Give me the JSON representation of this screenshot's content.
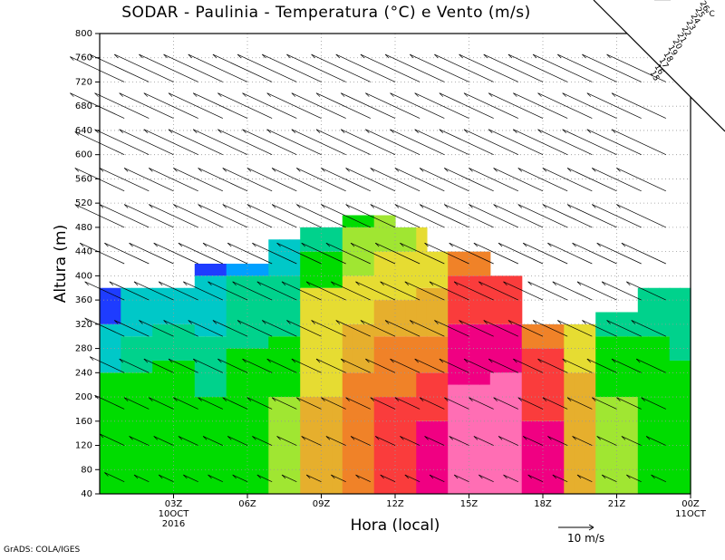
{
  "title": "SODAR - Paulinia - Temperatura (°C) e Vento (m/s)",
  "footer": "GrADS: COLA/IGES",
  "colorbar": {
    "unit": "°C",
    "labels": [
      "15",
      "16",
      "17",
      "18",
      "19",
      "20",
      "21",
      "22",
      "23",
      "24",
      "25",
      "26"
    ],
    "colors": [
      "#a000c8",
      "#6e00dc",
      "#1e3cff",
      "#00a0ff",
      "#00c8c8",
      "#00d28c",
      "#00dc00",
      "#a0e632",
      "#e6dc32",
      "#e6af2d",
      "#f08228",
      "#fa3c3c",
      "#f00082",
      "#ff6eb4",
      "#ffb4dc"
    ]
  },
  "chart_data": {
    "type": "heatmap",
    "title": "SODAR - Paulinia - Temperatura (°C) e Vento (m/s)",
    "xlabel": "Hora (local)",
    "ylabel": "Altura (m)",
    "x_ticks": [
      "03Z",
      "06Z",
      "09Z",
      "12Z",
      "15Z",
      "18Z",
      "21Z",
      "00Z"
    ],
    "x_sublabels": [
      {
        "tick": "03Z",
        "lines": [
          "10OCT",
          "2016"
        ]
      },
      {
        "tick": "00Z",
        "lines": [
          "11OCT"
        ]
      }
    ],
    "xlim_hours": [
      0,
      24
    ],
    "ylim": [
      40,
      800
    ],
    "y_ticks": [
      40,
      80,
      120,
      160,
      200,
      240,
      280,
      320,
      360,
      400,
      440,
      480,
      520,
      560,
      600,
      640,
      680,
      720,
      760,
      800
    ],
    "grid": true,
    "vector_legend": "10 m/s",
    "top_heights_m": [
      380,
      380,
      380,
      380,
      380,
      380,
      420,
      420,
      420,
      460,
      460,
      460,
      460,
      480,
      480,
      480,
      480,
      480,
      480,
      480,
      520,
      520,
      520,
      500,
      500,
      500,
      500,
      500,
      480,
      480,
      480,
      440,
      440,
      440,
      440,
      440,
      440,
      400,
      400,
      400,
      360,
      360,
      320,
      320,
      320,
      320,
      320,
      340,
      340,
      380,
      380,
      380,
      380,
      380,
      380,
      380
    ],
    "temperature_c": [
      {
        "hour": 0.0,
        "bands": [
          [
            40,
            240,
            19
          ],
          [
            240,
            320,
            17
          ],
          [
            320,
            380,
            15
          ]
        ]
      },
      {
        "hour": 1.5,
        "bands": [
          [
            40,
            240,
            19
          ],
          [
            240,
            300,
            18
          ],
          [
            300,
            380,
            17
          ]
        ]
      },
      {
        "hour": 3.0,
        "bands": [
          [
            40,
            260,
            19
          ],
          [
            260,
            320,
            18
          ],
          [
            320,
            380,
            17
          ]
        ]
      },
      {
        "hour": 4.5,
        "bands": [
          [
            40,
            200,
            19
          ],
          [
            200,
            300,
            18
          ],
          [
            300,
            400,
            17
          ],
          [
            400,
            420,
            15
          ]
        ]
      },
      {
        "hour": 6.0,
        "bands": [
          [
            40,
            280,
            19
          ],
          [
            280,
            400,
            18
          ],
          [
            400,
            420,
            16
          ]
        ]
      },
      {
        "hour": 7.5,
        "bands": [
          [
            40,
            200,
            20
          ],
          [
            200,
            300,
            19
          ],
          [
            300,
            400,
            18
          ],
          [
            400,
            460,
            17
          ]
        ]
      },
      {
        "hour": 9.0,
        "bands": [
          [
            40,
            200,
            22
          ],
          [
            200,
            380,
            21
          ],
          [
            380,
            440,
            19
          ],
          [
            440,
            480,
            18
          ]
        ]
      },
      {
        "hour": 10.5,
        "bands": [
          [
            40,
            240,
            23
          ],
          [
            240,
            320,
            22
          ],
          [
            320,
            400,
            21
          ],
          [
            400,
            480,
            20
          ],
          [
            480,
            520,
            19
          ]
        ]
      },
      {
        "hour": 12.0,
        "bands": [
          [
            40,
            200,
            24
          ],
          [
            200,
            300,
            23
          ],
          [
            300,
            360,
            22
          ],
          [
            360,
            440,
            21
          ],
          [
            440,
            500,
            20
          ]
        ]
      },
      {
        "hour": 13.5,
        "bands": [
          [
            40,
            160,
            25
          ],
          [
            160,
            240,
            24
          ],
          [
            240,
            300,
            23
          ],
          [
            300,
            380,
            22
          ],
          [
            380,
            480,
            21
          ]
        ]
      },
      {
        "hour": 15.0,
        "bands": [
          [
            40,
            220,
            26
          ],
          [
            220,
            320,
            25
          ],
          [
            320,
            400,
            24
          ],
          [
            400,
            440,
            23
          ]
        ]
      },
      {
        "hour": 16.5,
        "bands": [
          [
            40,
            240,
            26
          ],
          [
            240,
            320,
            25
          ],
          [
            320,
            400,
            24
          ]
        ]
      },
      {
        "hour": 18.0,
        "bands": [
          [
            40,
            160,
            25
          ],
          [
            160,
            280,
            24
          ],
          [
            280,
            320,
            23
          ]
        ]
      },
      {
        "hour": 19.5,
        "bands": [
          [
            40,
            240,
            22
          ],
          [
            240,
            320,
            21
          ]
        ]
      },
      {
        "hour": 21.0,
        "bands": [
          [
            40,
            200,
            20
          ],
          [
            200,
            300,
            19
          ],
          [
            300,
            340,
            18
          ]
        ]
      },
      {
        "hour": 22.5,
        "bands": [
          [
            40,
            200,
            19
          ],
          [
            200,
            300,
            19
          ],
          [
            300,
            380,
            18
          ]
        ]
      },
      {
        "hour": 24.0,
        "bands": [
          [
            40,
            260,
            19
          ],
          [
            260,
            380,
            18
          ]
        ]
      }
    ],
    "wind_speed_ms": [
      {
        "hour": 1.0,
        "values": [
          4,
          5,
          6,
          7,
          8,
          8,
          9,
          10,
          10,
          10,
          11,
          11
        ]
      },
      {
        "hour": 1.5,
        "values": [
          3,
          4,
          5,
          6,
          7,
          8,
          9,
          10,
          10,
          11,
          11,
          12
        ]
      },
      {
        "hour": 2.0,
        "values": [
          3,
          4,
          5,
          6,
          7,
          8,
          9,
          10,
          10,
          11,
          11,
          12
        ]
      }
    ]
  }
}
